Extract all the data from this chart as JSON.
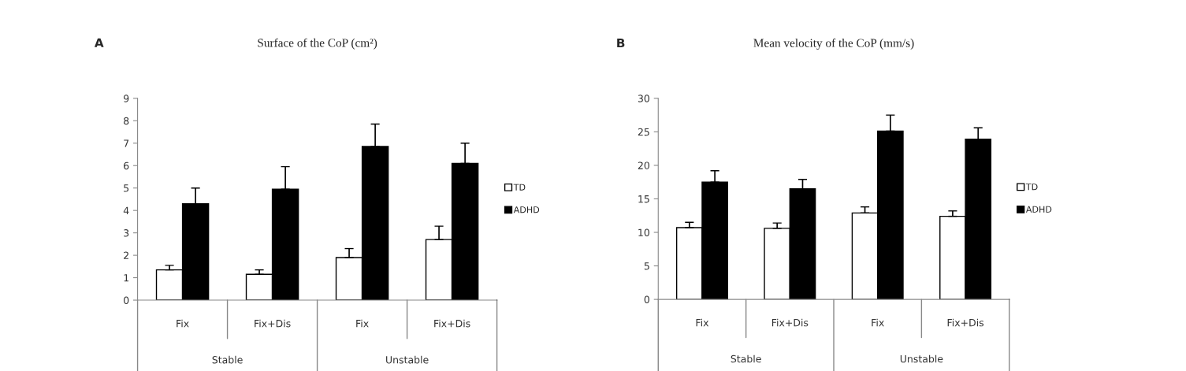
{
  "chart_data": [
    {
      "type": "bar",
      "title": "Surface of the CoP (cm²)",
      "annotations": [
        "A",
        "Stable",
        "Unstable"
      ],
      "categories": [
        "Fix",
        "Fix+Dis",
        "Fix",
        "Fix+Dis"
      ],
      "series": [
        {
          "name": "TD",
          "color": "#ffffff",
          "values": [
            1.35,
            1.15,
            1.9,
            2.7
          ],
          "errors": [
            0.2,
            0.2,
            0.4,
            0.6
          ]
        },
        {
          "name": "ADHD",
          "color": "#000000",
          "values": [
            4.3,
            4.95,
            6.85,
            6.1
          ],
          "errors": [
            0.7,
            1.0,
            1.0,
            0.9
          ]
        }
      ],
      "ylim": [
        0,
        9
      ],
      "yticks": [
        0,
        1,
        2,
        3,
        4,
        5,
        6,
        7,
        8,
        9
      ],
      "grid": false,
      "legend": "right"
    },
    {
      "type": "bar",
      "title": "Mean velocity of the CoP (mm/s)",
      "annotations": [
        "B",
        "Stable",
        "Unstable"
      ],
      "categories": [
        "Fix",
        "Fix+Dis",
        "Fix",
        "Fix+Dis"
      ],
      "series": [
        {
          "name": "TD",
          "color": "#ffffff",
          "values": [
            10.7,
            10.6,
            12.9,
            12.4
          ],
          "errors": [
            0.8,
            0.8,
            0.9,
            0.8
          ]
        },
        {
          "name": "ADHD",
          "color": "#000000",
          "values": [
            17.5,
            16.5,
            25.1,
            23.9
          ],
          "errors": [
            1.7,
            1.4,
            2.4,
            1.7
          ]
        }
      ],
      "ylim": [
        0,
        30
      ],
      "yticks": [
        0,
        5,
        10,
        15,
        20,
        25,
        30
      ],
      "grid": false,
      "legend": "right"
    }
  ]
}
